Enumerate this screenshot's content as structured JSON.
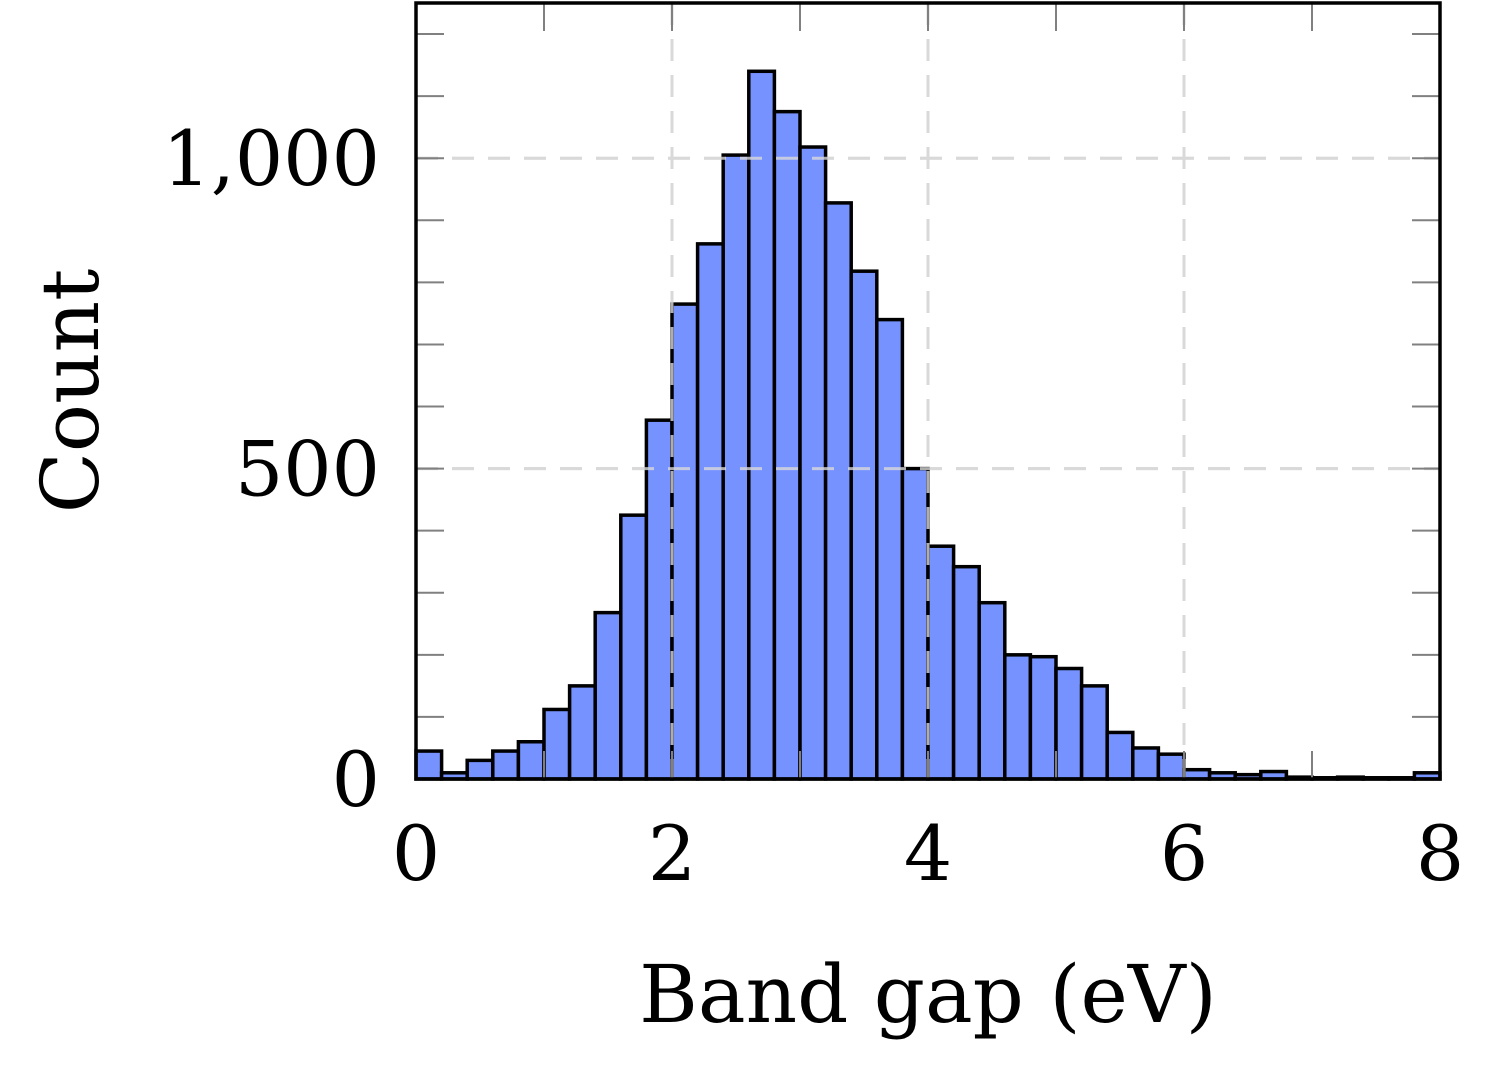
{
  "chart_data": {
    "type": "bar",
    "histogram": true,
    "xlabel": "Band gap (eV)",
    "ylabel": "Count",
    "xlim": [
      0,
      8
    ],
    "ylim": [
      0,
      1250
    ],
    "x_ticks": [
      {
        "value": 0,
        "label": "0"
      },
      {
        "value": 2,
        "label": "2"
      },
      {
        "value": 4,
        "label": "4"
      },
      {
        "value": 6,
        "label": "6"
      },
      {
        "value": 8,
        "label": "8"
      }
    ],
    "y_ticks": [
      {
        "value": 0,
        "label": "0"
      },
      {
        "value": 500,
        "label": "500"
      },
      {
        "value": 1000,
        "label": "1,000"
      }
    ],
    "y_minor_tick_step": 100,
    "x_minor_tick_step": 1,
    "grid": "dashed, major ticks",
    "bin_width": 0.2,
    "bins": [
      {
        "x0": 0.0,
        "x1": 0.2,
        "count": 45
      },
      {
        "x0": 0.2,
        "x1": 0.4,
        "count": 10
      },
      {
        "x0": 0.4,
        "x1": 0.6,
        "count": 30
      },
      {
        "x0": 0.6,
        "x1": 0.8,
        "count": 45
      },
      {
        "x0": 0.8,
        "x1": 1.0,
        "count": 60
      },
      {
        "x0": 1.0,
        "x1": 1.2,
        "count": 112
      },
      {
        "x0": 1.2,
        "x1": 1.4,
        "count": 150
      },
      {
        "x0": 1.4,
        "x1": 1.6,
        "count": 268
      },
      {
        "x0": 1.6,
        "x1": 1.8,
        "count": 425
      },
      {
        "x0": 1.8,
        "x1": 2.0,
        "count": 578
      },
      {
        "x0": 2.0,
        "x1": 2.2,
        "count": 765
      },
      {
        "x0": 2.2,
        "x1": 2.4,
        "count": 862
      },
      {
        "x0": 2.4,
        "x1": 2.6,
        "count": 1005
      },
      {
        "x0": 2.6,
        "x1": 2.8,
        "count": 1140
      },
      {
        "x0": 2.8,
        "x1": 3.0,
        "count": 1075
      },
      {
        "x0": 3.0,
        "x1": 3.2,
        "count": 1018
      },
      {
        "x0": 3.2,
        "x1": 3.4,
        "count": 928
      },
      {
        "x0": 3.4,
        "x1": 3.6,
        "count": 818
      },
      {
        "x0": 3.6,
        "x1": 3.8,
        "count": 740
      },
      {
        "x0": 3.8,
        "x1": 4.0,
        "count": 500
      },
      {
        "x0": 4.0,
        "x1": 4.2,
        "count": 375
      },
      {
        "x0": 4.2,
        "x1": 4.4,
        "count": 342
      },
      {
        "x0": 4.4,
        "x1": 4.6,
        "count": 284
      },
      {
        "x0": 4.6,
        "x1": 4.8,
        "count": 200
      },
      {
        "x0": 4.8,
        "x1": 5.0,
        "count": 197
      },
      {
        "x0": 5.0,
        "x1": 5.2,
        "count": 178
      },
      {
        "x0": 5.2,
        "x1": 5.4,
        "count": 150
      },
      {
        "x0": 5.4,
        "x1": 5.6,
        "count": 75
      },
      {
        "x0": 5.6,
        "x1": 5.8,
        "count": 50
      },
      {
        "x0": 5.8,
        "x1": 6.0,
        "count": 40
      },
      {
        "x0": 6.0,
        "x1": 6.2,
        "count": 15
      },
      {
        "x0": 6.2,
        "x1": 6.4,
        "count": 10
      },
      {
        "x0": 6.4,
        "x1": 6.6,
        "count": 7
      },
      {
        "x0": 6.6,
        "x1": 6.8,
        "count": 12
      },
      {
        "x0": 6.8,
        "x1": 7.0,
        "count": 3
      },
      {
        "x0": 7.0,
        "x1": 7.2,
        "count": 2
      },
      {
        "x0": 7.2,
        "x1": 7.4,
        "count": 3
      },
      {
        "x0": 7.4,
        "x1": 7.6,
        "count": 2
      },
      {
        "x0": 7.6,
        "x1": 7.8,
        "count": 2
      },
      {
        "x0": 7.8,
        "x1": 8.0,
        "count": 10
      }
    ],
    "bar_color": "#7692ff",
    "bar_edge_color": "#000000",
    "grid_color": "#d9d9d9",
    "tick_color": "#808080"
  }
}
